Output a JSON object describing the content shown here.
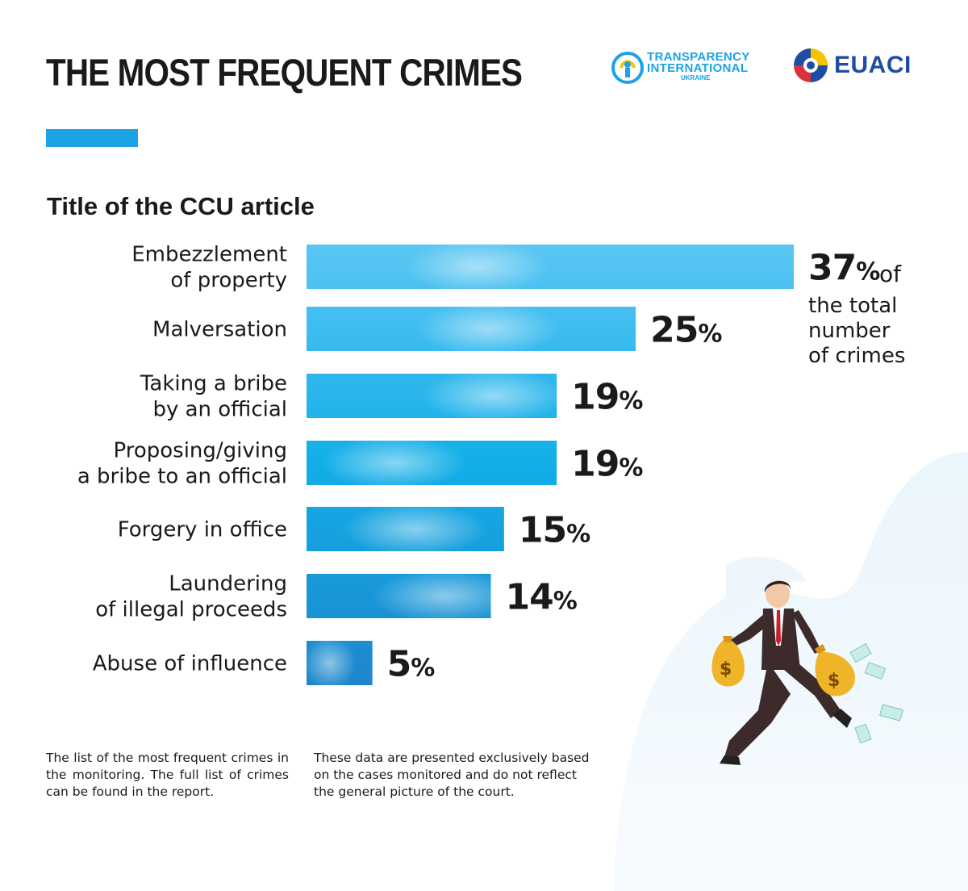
{
  "title": "THE MOST FREQUENT CRIMES",
  "subtitle": "Title of the CCU article",
  "logos": {
    "ti_line1": "TRANSPARENCY",
    "ti_line2": "INTERNATIONAL",
    "ti_line3": "UKRAINE",
    "euaci": "EUACI"
  },
  "colors": {
    "accent": "#1ca3e6",
    "text": "#1a1a1a",
    "bar_top": "#5bc6f3",
    "bar_bottom": "#1e86cc"
  },
  "chart_data": {
    "type": "bar",
    "orientation": "horizontal",
    "title": "Title of the CCU article",
    "categories": [
      [
        "Embezzlement",
        "of property"
      ],
      [
        "Malversation"
      ],
      [
        "Taking a bribe",
        "by an official"
      ],
      [
        "Proposing/giving",
        "a bribe to an official"
      ],
      [
        "Forgery in office"
      ],
      [
        "Laundering",
        "of illegal proceeds"
      ],
      [
        "Abuse of influence"
      ]
    ],
    "values": [
      37,
      25,
      19,
      19,
      15,
      14,
      5
    ],
    "value_suffix": "%",
    "xlim": [
      0,
      37
    ],
    "grid": false,
    "legend": "none"
  },
  "total_note": {
    "suffix": "of",
    "lines": [
      "the total",
      "number",
      "of crimes"
    ]
  },
  "footnotes": {
    "left": "The list of the most frequent crimes in the monitoring. The full list of crimes can be found in the report.",
    "right": "These data are presented exclusively based on the cases monitored and do not reflect the general picture of the court."
  },
  "illustration": "running-businessman-with-money-bags"
}
